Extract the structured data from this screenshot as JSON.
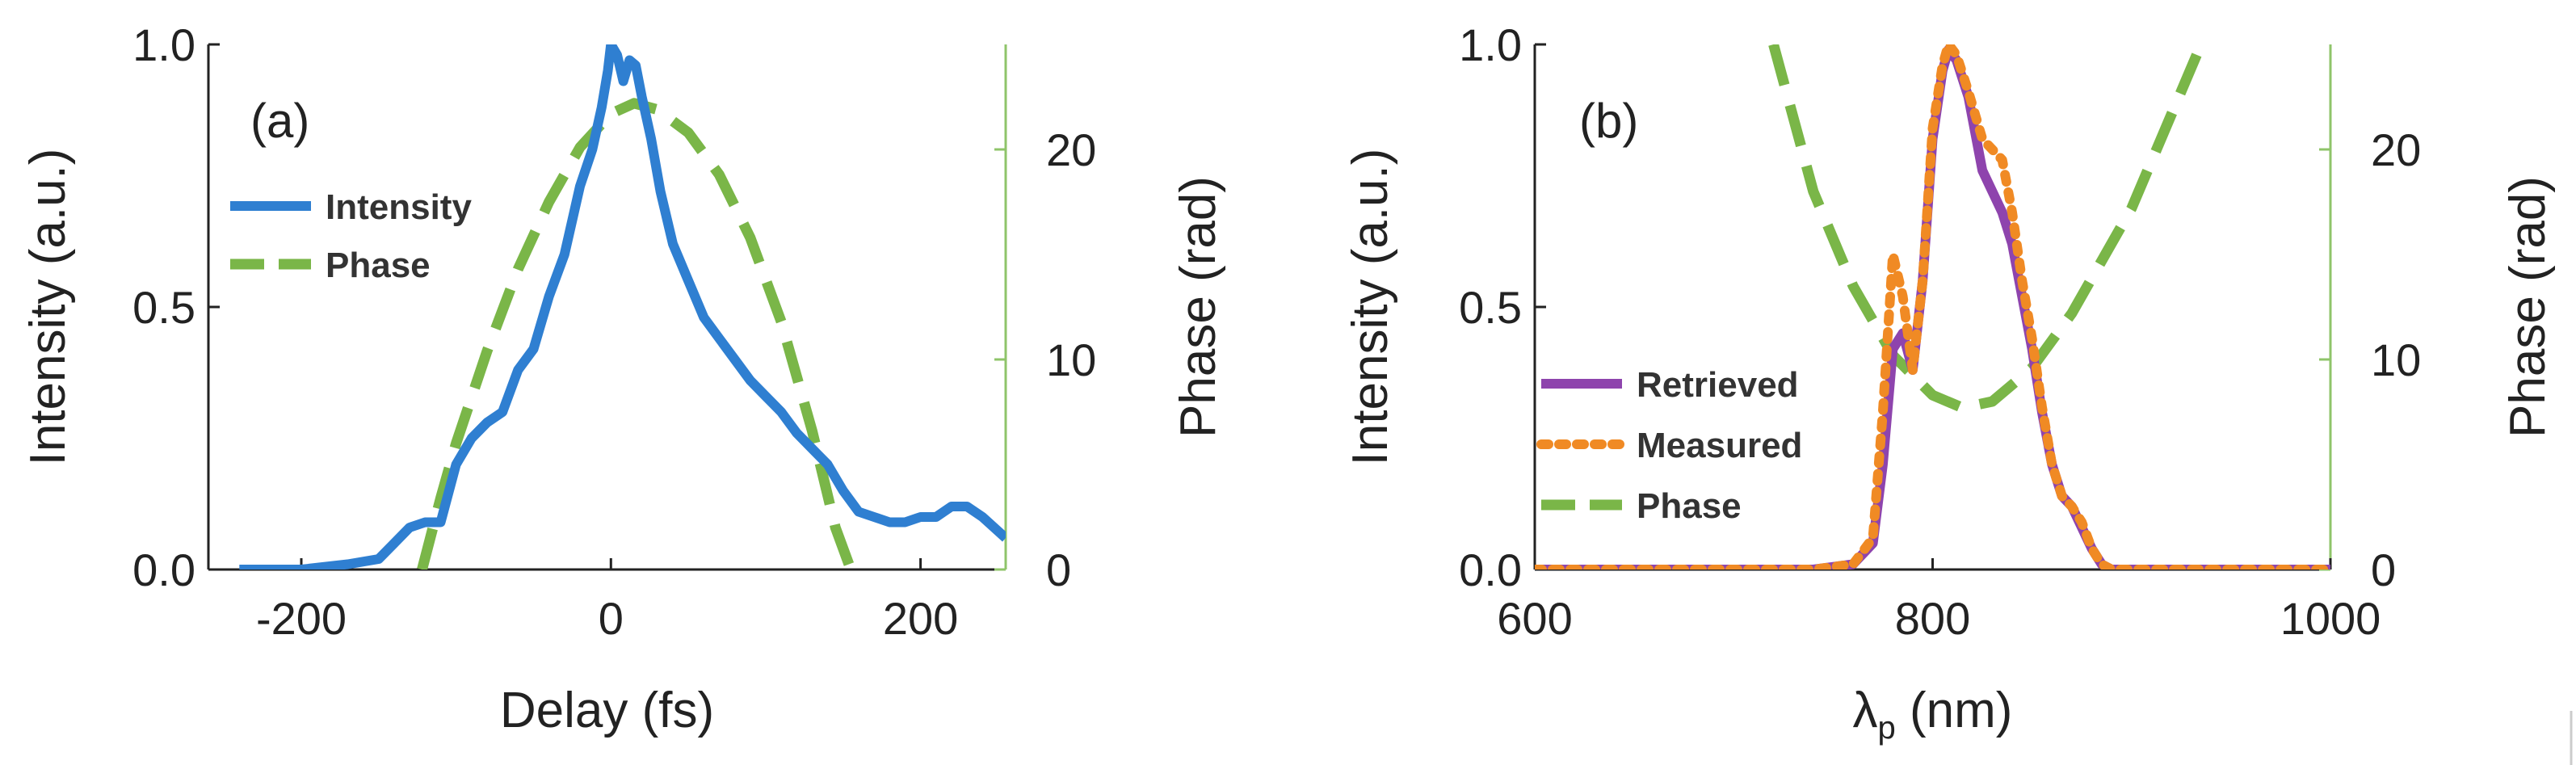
{
  "chart_data": [
    {
      "type": "line",
      "panel_label": "(a)",
      "xlabel": "Delay (fs)",
      "ylabel": "Intensity (a.u.)",
      "y2label": "Phase (rad)",
      "xlim": [
        -260,
        255
      ],
      "ylim": [
        0,
        1.0
      ],
      "y2lim": [
        0,
        25
      ],
      "xticks": [
        -200,
        0,
        200
      ],
      "xtick_labels": [
        "-200",
        "0",
        "200"
      ],
      "yticks": [
        0,
        0.5,
        1.0
      ],
      "ytick_labels": [
        "0.0",
        "0.5",
        "1.0"
      ],
      "y2ticks": [
        0,
        10,
        20
      ],
      "y2tick_labels": [
        "0",
        "10",
        "20"
      ],
      "legend_position": "left",
      "series": [
        {
          "name": "Intensity",
          "axis": "left",
          "style": "solid",
          "color": "#2f7fd1",
          "x": [
            -240,
            -200,
            -170,
            -150,
            -140,
            -130,
            -120,
            -110,
            -100,
            -90,
            -80,
            -70,
            -60,
            -50,
            -40,
            -30,
            -20,
            -12,
            -6,
            -2,
            0,
            4,
            8,
            12,
            16,
            20,
            26,
            32,
            40,
            50,
            60,
            70,
            80,
            90,
            100,
            110,
            120,
            130,
            140,
            150,
            160,
            170,
            180,
            190,
            200,
            210,
            220,
            230,
            240,
            255
          ],
          "y": [
            0,
            0,
            0.01,
            0.02,
            0.05,
            0.08,
            0.09,
            0.09,
            0.2,
            0.25,
            0.28,
            0.3,
            0.38,
            0.42,
            0.52,
            0.6,
            0.73,
            0.8,
            0.88,
            0.95,
            1.0,
            0.98,
            0.93,
            0.97,
            0.96,
            0.9,
            0.82,
            0.72,
            0.62,
            0.55,
            0.48,
            0.44,
            0.4,
            0.36,
            0.33,
            0.3,
            0.26,
            0.23,
            0.2,
            0.15,
            0.11,
            0.1,
            0.09,
            0.09,
            0.1,
            0.1,
            0.12,
            0.12,
            0.1,
            0.06
          ]
        },
        {
          "name": "Phase",
          "axis": "right",
          "style": "dash",
          "color": "#7ab648",
          "x": [
            -122,
            -110,
            -100,
            -80,
            -60,
            -40,
            -20,
            0,
            15,
            30,
            50,
            70,
            90,
            110,
            130,
            145,
            155
          ],
          "y": [
            0,
            3.4,
            6.0,
            10.4,
            14.3,
            17.5,
            20.1,
            21.7,
            22.2,
            21.9,
            20.8,
            18.8,
            15.8,
            11.8,
            6.6,
            2.0,
            0
          ]
        }
      ]
    },
    {
      "type": "line",
      "panel_label": "(b)",
      "xlabel": "λp (nm)",
      "xlabel_main": "λ",
      "xlabel_sub": "p",
      "xlabel_unit": " (nm)",
      "ylabel": "Intensity (a.u.)",
      "y2label": "Phase (rad)",
      "xlim": [
        600,
        1000
      ],
      "ylim": [
        0,
        1.0
      ],
      "y2lim": [
        0,
        25
      ],
      "xticks": [
        600,
        800,
        1000
      ],
      "xtick_labels": [
        "600",
        "800",
        "1000"
      ],
      "yticks": [
        0,
        0.5,
        1.0
      ],
      "ytick_labels": [
        "0.0",
        "0.5",
        "1.0"
      ],
      "y2ticks": [
        0,
        10,
        20
      ],
      "y2tick_labels": [
        "0",
        "10",
        "20"
      ],
      "legend_position": "lower-left",
      "series": [
        {
          "name": "Retrieved",
          "axis": "left",
          "style": "solid",
          "color": "#8e44ad",
          "x": [
            600,
            740,
            760,
            770,
            775,
            780,
            785,
            790,
            795,
            800,
            805,
            808,
            812,
            818,
            825,
            830,
            835,
            840,
            845,
            850,
            855,
            860,
            865,
            870,
            875,
            880,
            885,
            890,
            1000
          ],
          "y": [
            0,
            0,
            0.01,
            0.05,
            0.2,
            0.42,
            0.45,
            0.38,
            0.55,
            0.82,
            0.95,
            0.99,
            0.97,
            0.9,
            0.76,
            0.72,
            0.68,
            0.62,
            0.52,
            0.42,
            0.3,
            0.2,
            0.14,
            0.12,
            0.08,
            0.04,
            0.01,
            0,
            0
          ]
        },
        {
          "name": "Measured",
          "axis": "left",
          "style": "dot",
          "color": "#f08a24",
          "x": [
            600,
            740,
            760,
            770,
            775,
            780,
            785,
            790,
            795,
            800,
            805,
            808,
            812,
            818,
            825,
            830,
            835,
            840,
            845,
            850,
            855,
            860,
            865,
            870,
            875,
            880,
            885,
            890,
            1000
          ],
          "y": [
            0,
            0,
            0.01,
            0.06,
            0.3,
            0.6,
            0.52,
            0.38,
            0.55,
            0.84,
            0.96,
            1.0,
            0.98,
            0.91,
            0.82,
            0.8,
            0.78,
            0.68,
            0.55,
            0.44,
            0.31,
            0.2,
            0.14,
            0.12,
            0.09,
            0.04,
            0.01,
            0,
            0
          ]
        },
        {
          "name": "Phase",
          "axis": "right",
          "style": "dash",
          "color": "#7ab648",
          "x": [
            720,
            740,
            760,
            780,
            800,
            815,
            830,
            850,
            870,
            900,
            935
          ],
          "y": [
            25,
            18,
            13.5,
            10.2,
            8.3,
            7.7,
            8.0,
            9.6,
            12.2,
            17.2,
            25
          ]
        }
      ]
    }
  ]
}
